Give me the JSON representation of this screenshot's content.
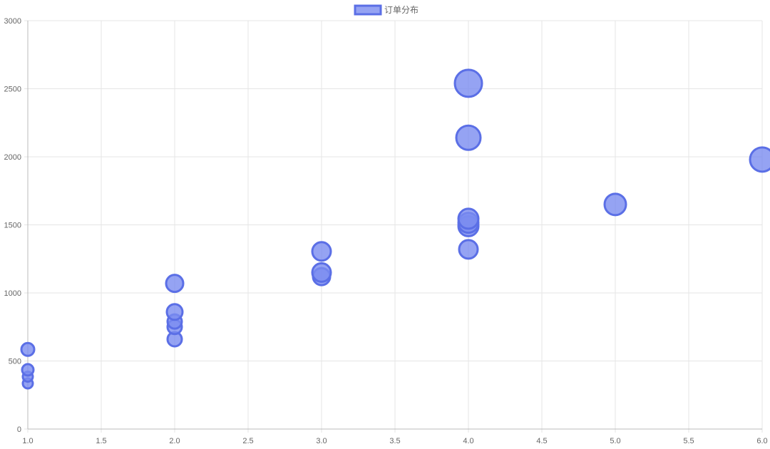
{
  "chart_data": {
    "type": "bubble",
    "legend": {
      "position": "top-center",
      "entries": [
        "订单分布"
      ]
    },
    "x_axis": {
      "range": [
        1.0,
        6.0
      ],
      "ticks": [
        "1.0",
        "1.5",
        "2.0",
        "2.5",
        "3.0",
        "3.5",
        "4.0",
        "4.5",
        "5.0",
        "5.5",
        "6.0"
      ],
      "grid": true
    },
    "y_axis": {
      "range": [
        0,
        3000
      ],
      "ticks": [
        "0",
        "500",
        "1000",
        "1500",
        "2000",
        "2500",
        "3000"
      ],
      "grid": true
    },
    "colors": {
      "fill": "#7b8cf0",
      "stroke": "#5b6fe6",
      "grid": "#e5e5e5",
      "axis": "#bbbbbb"
    },
    "series": [
      {
        "name": "订单分布",
        "points": [
          {
            "x": 1,
            "y": 335,
            "r": 7
          },
          {
            "x": 1,
            "y": 385,
            "r": 7
          },
          {
            "x": 1,
            "y": 435,
            "r": 8
          },
          {
            "x": 1,
            "y": 585,
            "r": 9
          },
          {
            "x": 2,
            "y": 660,
            "r": 10
          },
          {
            "x": 2,
            "y": 750,
            "r": 10
          },
          {
            "x": 2,
            "y": 790,
            "r": 10
          },
          {
            "x": 2,
            "y": 860,
            "r": 11
          },
          {
            "x": 2,
            "y": 1070,
            "r": 12
          },
          {
            "x": 3,
            "y": 1120,
            "r": 12
          },
          {
            "x": 3,
            "y": 1150,
            "r": 13
          },
          {
            "x": 3,
            "y": 1305,
            "r": 13
          },
          {
            "x": 4,
            "y": 1320,
            "r": 13
          },
          {
            "x": 4,
            "y": 1490,
            "r": 14
          },
          {
            "x": 4,
            "y": 1515,
            "r": 14
          },
          {
            "x": 4,
            "y": 1545,
            "r": 14
          },
          {
            "x": 4,
            "y": 2140,
            "r": 17
          },
          {
            "x": 4,
            "y": 2540,
            "r": 19
          },
          {
            "x": 5,
            "y": 1650,
            "r": 15
          },
          {
            "x": 6,
            "y": 1980,
            "r": 17
          }
        ]
      }
    ]
  }
}
